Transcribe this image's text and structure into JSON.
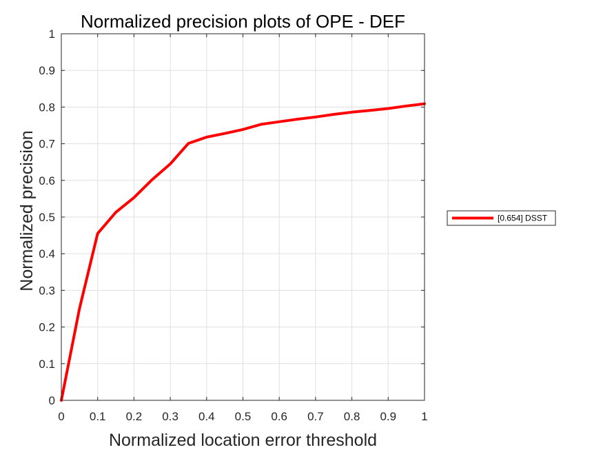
{
  "chart_data": {
    "type": "line",
    "title": "Normalized precision plots of OPE - DEF",
    "xlabel": "Normalized location error threshold",
    "ylabel": "Normalized precision",
    "xlim": [
      0,
      1
    ],
    "ylim": [
      0,
      1
    ],
    "xticks": [
      0,
      0.1,
      0.2,
      0.3,
      0.4,
      0.5,
      0.6,
      0.7,
      0.8,
      0.9,
      1
    ],
    "yticks": [
      0,
      0.1,
      0.2,
      0.3,
      0.4,
      0.5,
      0.6,
      0.7,
      0.8,
      0.9,
      1
    ],
    "xtick_labels": [
      "0",
      "0.1",
      "0.2",
      "0.3",
      "0.4",
      "0.5",
      "0.6",
      "0.7",
      "0.8",
      "0.9",
      "1"
    ],
    "ytick_labels": [
      "0",
      "0.1",
      "0.2",
      "0.3",
      "0.4",
      "0.5",
      "0.6",
      "0.7",
      "0.8",
      "0.9",
      "1"
    ],
    "grid": true,
    "legend_placement": "outside-right",
    "series": [
      {
        "name": "[0.654] DSST",
        "color": "#ff0000",
        "x": [
          0,
          0.05,
          0.1,
          0.15,
          0.2,
          0.25,
          0.3,
          0.35,
          0.4,
          0.45,
          0.5,
          0.55,
          0.6,
          0.65,
          0.7,
          0.75,
          0.8,
          0.85,
          0.9,
          0.95,
          1
        ],
        "y": [
          0,
          0.25,
          0.455,
          0.513,
          0.553,
          0.602,
          0.645,
          0.701,
          0.718,
          0.728,
          0.739,
          0.753,
          0.76,
          0.767,
          0.773,
          0.78,
          0.786,
          0.791,
          0.796,
          0.803,
          0.809
        ]
      }
    ]
  }
}
